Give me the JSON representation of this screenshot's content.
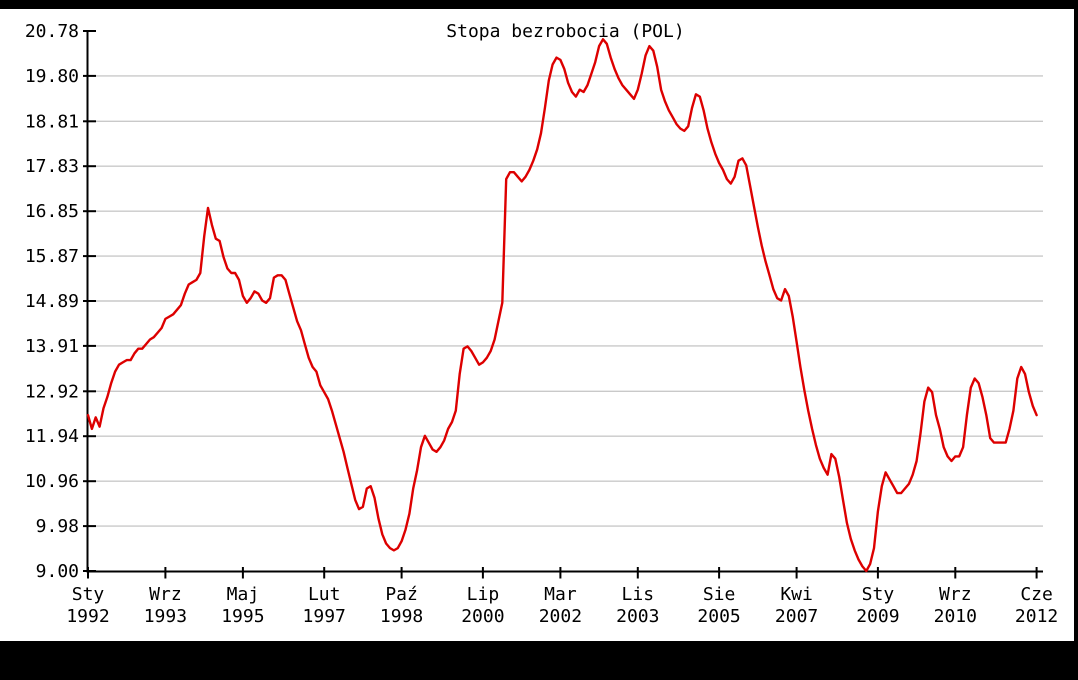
{
  "window": {
    "background_color": "#000000",
    "plot_background_color": "#ffffff"
  },
  "chart_data": {
    "type": "line",
    "title": "Stopa bezrobocia (POL)",
    "xlabel": "",
    "ylabel": "",
    "ylim": [
      9.0,
      20.78
    ],
    "grid": true,
    "grid_color": "#c9c9c9",
    "axis_color": "#000000",
    "line_color": "#dd0000",
    "legend_position": "none",
    "y_tick_labels": [
      "20.78",
      "19.80",
      "18.81",
      "17.83",
      "16.85",
      "15.87",
      "14.89",
      "13.91",
      "12.92",
      "11.94",
      "10.96",
      "9.98",
      "9.00"
    ],
    "x_tick_labels": [
      {
        "month": "Sty",
        "year": "1992"
      },
      {
        "month": "Wrz",
        "year": "1993"
      },
      {
        "month": "Maj",
        "year": "1995"
      },
      {
        "month": "Lut",
        "year": "1997"
      },
      {
        "month": "Paź",
        "year": "1998"
      },
      {
        "month": "Lip",
        "year": "2000"
      },
      {
        "month": "Mar",
        "year": "2002"
      },
      {
        "month": "Lis",
        "year": "2003"
      },
      {
        "month": "Sie",
        "year": "2005"
      },
      {
        "month": "Kwi",
        "year": "2007"
      },
      {
        "month": "Sty",
        "year": "2009"
      },
      {
        "month": "Wrz",
        "year": "2010"
      },
      {
        "month": "Cze",
        "year": "2012"
      }
    ],
    "x_tick_month_index": [
      0,
      20,
      40,
      61,
      81,
      102,
      122,
      142,
      163,
      183,
      204,
      224,
      245
    ],
    "x_start_label": "Sty 1992",
    "x_end_label": "Cze 2012",
    "values_monthly": [
      12.4,
      12.1,
      12.35,
      12.15,
      12.55,
      12.8,
      13.1,
      13.35,
      13.5,
      13.55,
      13.6,
      13.6,
      13.75,
      13.85,
      13.85,
      13.95,
      14.05,
      14.1,
      14.2,
      14.3,
      14.5,
      14.55,
      14.6,
      14.7,
      14.8,
      15.05,
      15.25,
      15.3,
      15.35,
      15.5,
      16.3,
      16.92,
      16.55,
      16.25,
      16.2,
      15.85,
      15.6,
      15.5,
      15.5,
      15.35,
      15.0,
      14.85,
      14.95,
      15.1,
      15.05,
      14.9,
      14.85,
      14.95,
      15.4,
      15.45,
      15.45,
      15.35,
      15.05,
      14.75,
      14.45,
      14.25,
      13.95,
      13.65,
      13.45,
      13.35,
      13.05,
      12.9,
      12.75,
      12.5,
      12.2,
      11.9,
      11.6,
      11.25,
      10.9,
      10.55,
      10.35,
      10.4,
      10.8,
      10.85,
      10.6,
      10.15,
      9.8,
      9.6,
      9.5,
      9.45,
      9.5,
      9.65,
      9.9,
      10.25,
      10.8,
      11.2,
      11.7,
      11.95,
      11.8,
      11.65,
      11.6,
      11.7,
      11.85,
      12.1,
      12.25,
      12.5,
      13.3,
      13.85,
      13.9,
      13.8,
      13.65,
      13.5,
      13.55,
      13.65,
      13.8,
      14.05,
      14.45,
      14.85,
      17.55,
      17.7,
      17.7,
      17.6,
      17.5,
      17.6,
      17.75,
      17.95,
      18.2,
      18.55,
      19.1,
      19.7,
      20.05,
      20.2,
      20.15,
      19.95,
      19.65,
      19.45,
      19.35,
      19.5,
      19.45,
      19.6,
      19.85,
      20.1,
      20.45,
      20.6,
      20.5,
      20.2,
      19.95,
      19.75,
      19.6,
      19.5,
      19.4,
      19.3,
      19.5,
      19.85,
      20.25,
      20.45,
      20.35,
      20.0,
      19.5,
      19.25,
      19.05,
      18.9,
      18.75,
      18.65,
      18.6,
      18.7,
      19.1,
      19.4,
      19.35,
      19.05,
      18.65,
      18.35,
      18.1,
      17.9,
      17.75,
      17.55,
      17.45,
      17.6,
      17.95,
      18.0,
      17.85,
      17.4,
      16.95,
      16.5,
      16.1,
      15.75,
      15.45,
      15.15,
      14.95,
      14.9,
      15.15,
      15.0,
      14.55,
      14.0,
      13.45,
      12.95,
      12.5,
      12.1,
      11.75,
      11.45,
      11.25,
      11.1,
      11.55,
      11.45,
      11.05,
      10.55,
      10.05,
      9.7,
      9.45,
      9.25,
      9.1,
      9.0,
      9.15,
      9.5,
      10.3,
      10.85,
      11.15,
      11.0,
      10.85,
      10.7,
      10.7,
      10.8,
      10.9,
      11.1,
      11.4,
      12.0,
      12.7,
      13.0,
      12.9,
      12.4,
      12.1,
      11.7,
      11.5,
      11.4,
      11.5,
      11.5,
      11.7,
      12.4,
      13.0,
      13.2,
      13.1,
      12.8,
      12.4,
      11.9,
      11.8,
      11.8,
      11.8,
      11.8,
      12.1,
      12.5,
      13.2,
      13.45,
      13.3,
      12.9,
      12.6,
      12.4
    ]
  }
}
